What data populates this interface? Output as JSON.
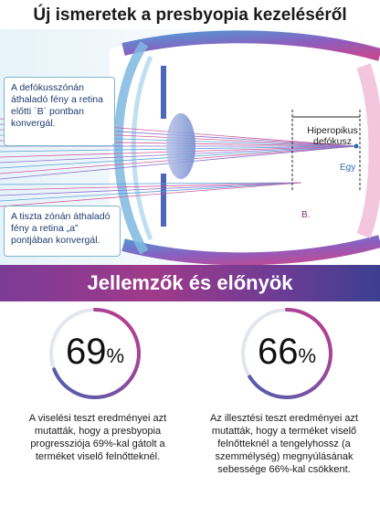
{
  "title": "Új ismeretek a presbyopia kezeléséről",
  "diagram": {
    "callout_top": "A defókusszónán áthaladó fény a retina előtti ´B´ pontban konvergál.",
    "callout_bottom": "A tiszta zónán áthaladó fény a retina „a” pontjában konvergál.",
    "hyperopic_label": "Hiperopikus defókusz",
    "egy_label": "Egy",
    "b_label": "B."
  },
  "banner": {
    "title": "Jellemzők és előnyök"
  },
  "stats": [
    {
      "value": "69",
      "unit": "%",
      "description": "A viselési teszt eredményei azt mutatták, hogy a presbyopia progressziója 69%-kal gátolt a terméket viselő felnőtteknél."
    },
    {
      "value": "66",
      "unit": "%",
      "description": "Az illesztési teszt eredményei azt mutatták, hogy a terméket viselő felnőtteknél a tengelyhossz (a szemmélység) megnyúlásának sebessége 66%-kal csökkent."
    }
  ],
  "colors": {
    "banner_start": "#7b3b96",
    "banner_end": "#3b3f8f",
    "ring_start": "#4a5fb0",
    "ring_end": "#c43c8a",
    "callout_border": "#7fb6c9"
  }
}
